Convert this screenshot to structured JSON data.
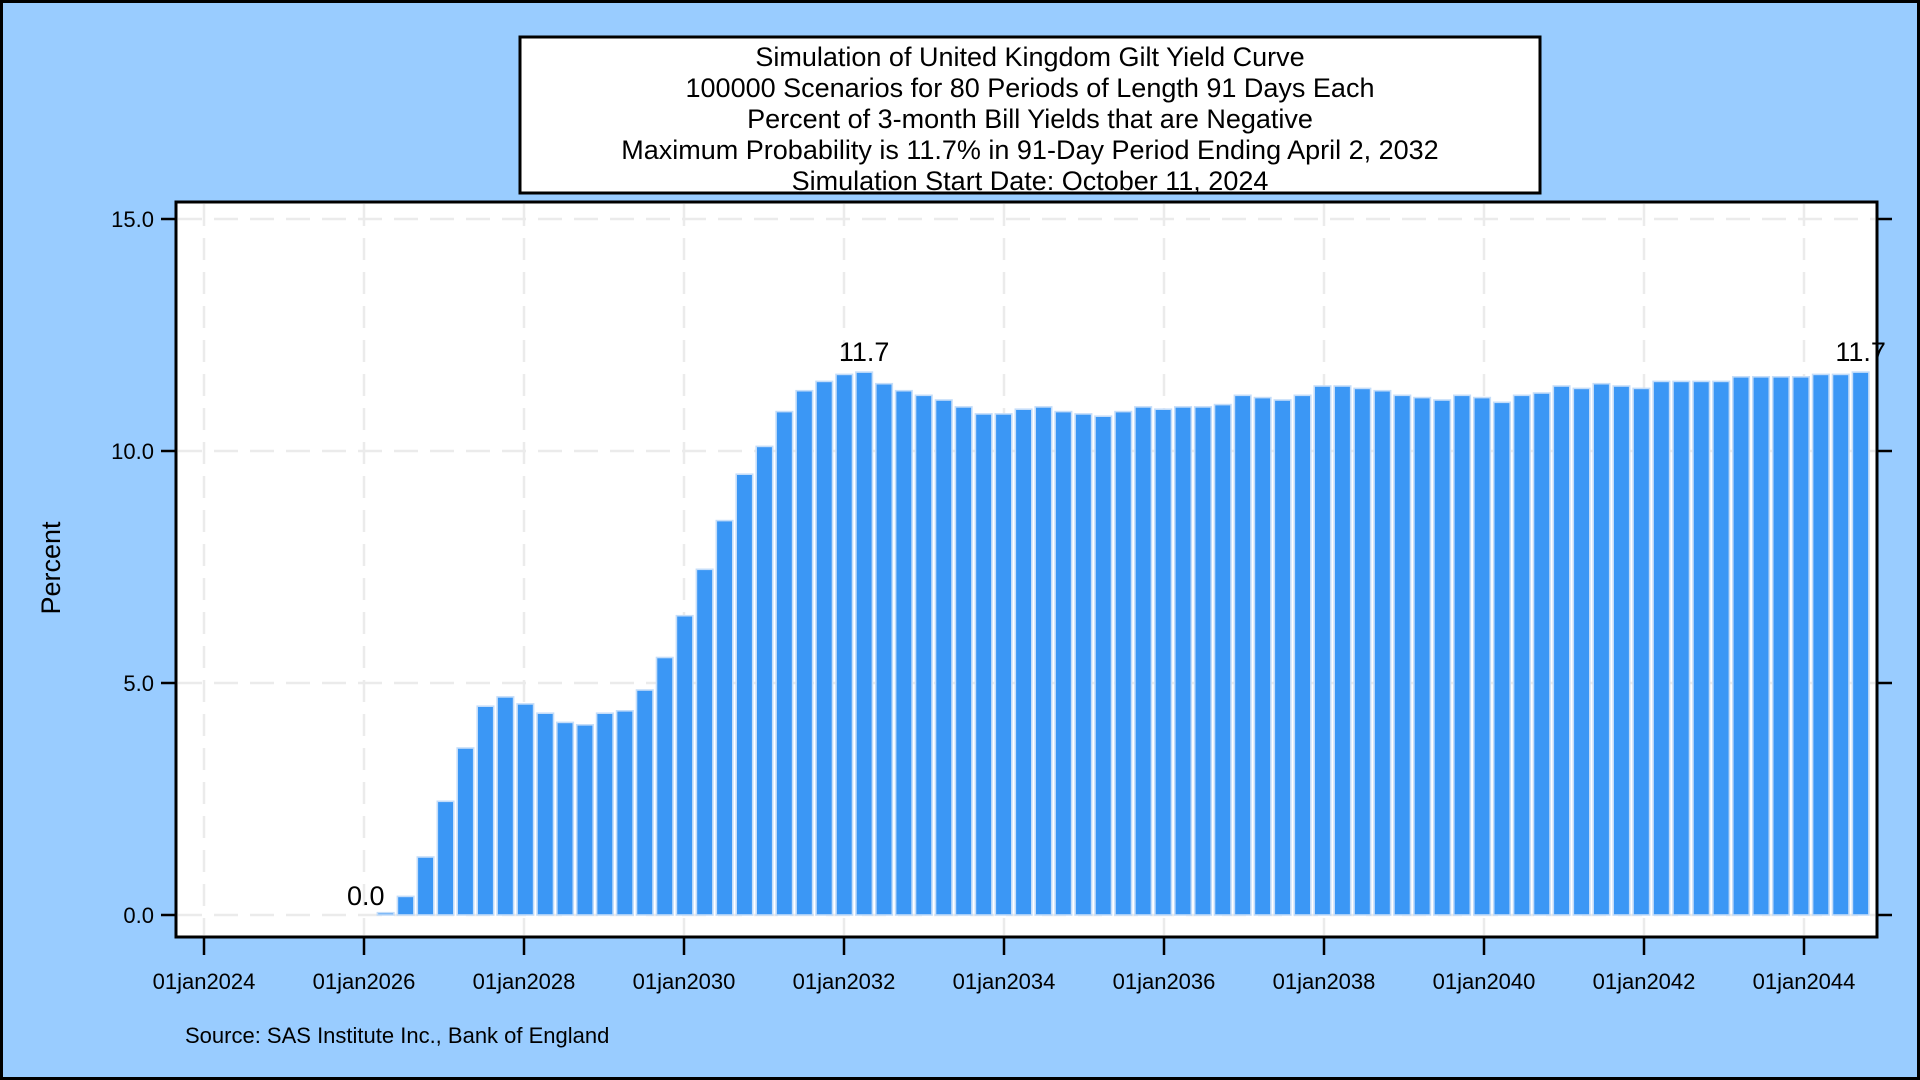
{
  "title_box": {
    "lines": [
      "Simulation of United Kingdom Gilt Yield Curve",
      "100000 Scenarios for 80 Periods of Length 91 Days Each",
      "Percent of 3-month Bill Yields that are Negative",
      "Maximum Probability is 11.7% in 91-Day Period Ending April 2, 2032",
      "Simulation Start Date: October 11, 2024"
    ]
  },
  "y_axis": {
    "title": "Percent",
    "tick_labels": [
      "0.0",
      "5.0",
      "10.0",
      "15.0"
    ],
    "tick_values": [
      0,
      5,
      10,
      15
    ]
  },
  "x_axis": {
    "tick_labels": [
      "01jan2024",
      "01jan2026",
      "01jan2028",
      "01jan2030",
      "01jan2032",
      "01jan2034",
      "01jan2036",
      "01jan2038",
      "01jan2040",
      "01jan2042",
      "01jan2044"
    ],
    "tick_years": [
      2024,
      2026,
      2028,
      2030,
      2032,
      2034,
      2036,
      2038,
      2040,
      2042,
      2044
    ]
  },
  "footnote": {
    "text": "Source: SAS Institute Inc., Bank of England"
  },
  "colors": {
    "outer_bg": "#99CCFF",
    "plot_bg": "#FFFFFF",
    "frame": "#000000",
    "grid": "#EBEBEB",
    "bar_fill": "#3B97F5",
    "bar_stroke": "#C4DDF9",
    "text": "#000000"
  },
  "chart_data": {
    "type": "bar",
    "title": "Simulation of United Kingdom Gilt Yield Curve - Percent of 3-month Bill Yields that are Negative",
    "xlabel": "",
    "ylabel": "Percent",
    "start_date_label": "October 11, 2024",
    "period_days": 91,
    "n_periods": 80,
    "ylim": [
      -0.5,
      15.4
    ],
    "xlim_years": [
      2023.65,
      2044.92
    ],
    "grid": true,
    "values": [
      0,
      0,
      0,
      0,
      0,
      0.05,
      0.4,
      1.25,
      2.45,
      3.6,
      4.5,
      4.7,
      4.55,
      4.35,
      4.15,
      4.1,
      4.35,
      4.4,
      4.85,
      5.55,
      6.45,
      7.45,
      8.5,
      9.5,
      10.1,
      10.85,
      11.3,
      11.5,
      11.65,
      11.7,
      11.45,
      11.3,
      11.2,
      11.1,
      10.95,
      10.8,
      10.8,
      10.9,
      10.95,
      10.85,
      10.8,
      10.75,
      10.85,
      10.95,
      10.9,
      10.95,
      10.95,
      11.0,
      11.2,
      11.15,
      11.1,
      11.2,
      11.4,
      11.4,
      11.35,
      11.3,
      11.2,
      11.15,
      11.1,
      11.2,
      11.15,
      11.05,
      11.2,
      11.25,
      11.4,
      11.35,
      11.45,
      11.4,
      11.35,
      11.5,
      11.5,
      11.5,
      11.5,
      11.6,
      11.6,
      11.6,
      11.6,
      11.65,
      11.65,
      11.7
    ],
    "annotations": [
      {
        "bar_index": 5,
        "text": "0.0"
      },
      {
        "bar_index": 30,
        "text": "11.7"
      },
      {
        "bar_index": 80,
        "text": "11.7"
      }
    ]
  }
}
